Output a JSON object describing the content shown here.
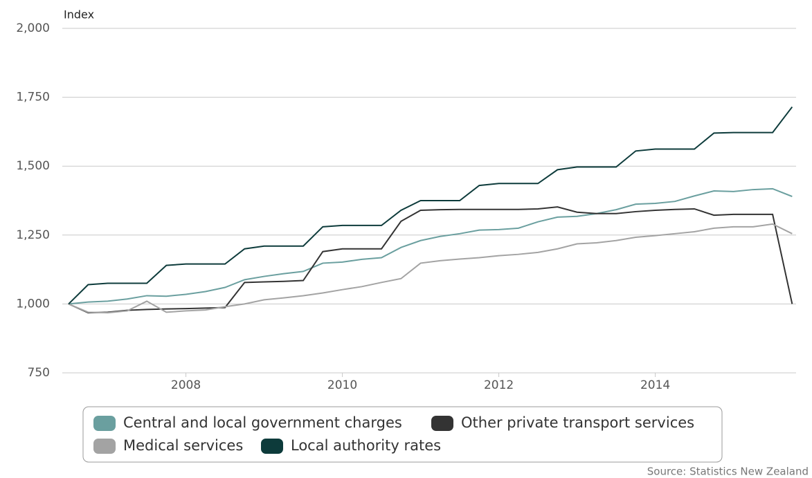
{
  "chart_data": {
    "type": "line",
    "y_label": "Index",
    "source": "Source: Statistics New Zealand",
    "x": [
      2006.5,
      2006.75,
      2007,
      2007.25,
      2007.5,
      2007.75,
      2008,
      2008.25,
      2008.5,
      2008.75,
      2009,
      2009.25,
      2009.5,
      2009.75,
      2010,
      2010.25,
      2010.5,
      2010.75,
      2011,
      2011.25,
      2011.5,
      2011.75,
      2012,
      2012.25,
      2012.5,
      2012.75,
      2013,
      2013.25,
      2013.5,
      2013.75,
      2014,
      2014.25,
      2014.5,
      2014.75,
      2015,
      2015.25,
      2015.5,
      2015.75
    ],
    "xlim": [
      2006.42,
      2015.8
    ],
    "xticks": [
      2008,
      2010,
      2012,
      2014
    ],
    "ylim": [
      750,
      2000
    ],
    "yticks": [
      {
        "value": 750,
        "label": "750"
      },
      {
        "value": 1000,
        "label": "1,000"
      },
      {
        "value": 1250,
        "label": "1,250"
      },
      {
        "value": 1500,
        "label": "1,500"
      },
      {
        "value": 1750,
        "label": "1,750"
      },
      {
        "value": 2000,
        "label": "2,000"
      }
    ],
    "grid": true,
    "series": [
      {
        "name": "Central and local government charges",
        "color": "#6a9f9f",
        "values": [
          1000,
          1007,
          1010,
          1018,
          1030,
          1028,
          1035,
          1045,
          1060,
          1088,
          1100,
          1110,
          1118,
          1148,
          1152,
          1162,
          1168,
          1205,
          1230,
          1245,
          1255,
          1268,
          1270,
          1275,
          1298,
          1315,
          1318,
          1328,
          1342,
          1362,
          1365,
          1372,
          1392,
          1410,
          1408,
          1415,
          1418,
          1390
        ]
      },
      {
        "name": "Other private transport services",
        "color": "#333333",
        "values": [
          1000,
          968,
          970,
          977,
          980,
          982,
          983,
          985,
          987,
          1078,
          1080,
          1082,
          1085,
          1190,
          1200,
          1200,
          1200,
          1300,
          1340,
          1342,
          1343,
          1343,
          1343,
          1343,
          1345,
          1352,
          1333,
          1328,
          1328,
          1335,
          1340,
          1343,
          1345,
          1322,
          1325,
          1325,
          1325,
          1000
        ]
      },
      {
        "name": "Medical services",
        "color": "#a3a3a3",
        "values": [
          1000,
          970,
          968,
          975,
          1010,
          970,
          975,
          978,
          990,
          1000,
          1015,
          1022,
          1030,
          1040,
          1052,
          1063,
          1078,
          1092,
          1148,
          1157,
          1163,
          1168,
          1175,
          1180,
          1187,
          1200,
          1218,
          1222,
          1230,
          1242,
          1248,
          1255,
          1262,
          1275,
          1280,
          1280,
          1290,
          1255
        ]
      },
      {
        "name": "Local authority rates",
        "color": "#0d3b3b",
        "values": [
          1000,
          1070,
          1075,
          1075,
          1075,
          1140,
          1145,
          1145,
          1145,
          1200,
          1210,
          1210,
          1210,
          1280,
          1285,
          1285,
          1285,
          1340,
          1375,
          1375,
          1375,
          1430,
          1437,
          1437,
          1437,
          1487,
          1497,
          1497,
          1497,
          1555,
          1562,
          1562,
          1562,
          1620,
          1622,
          1622,
          1622,
          1715
        ]
      }
    ]
  }
}
